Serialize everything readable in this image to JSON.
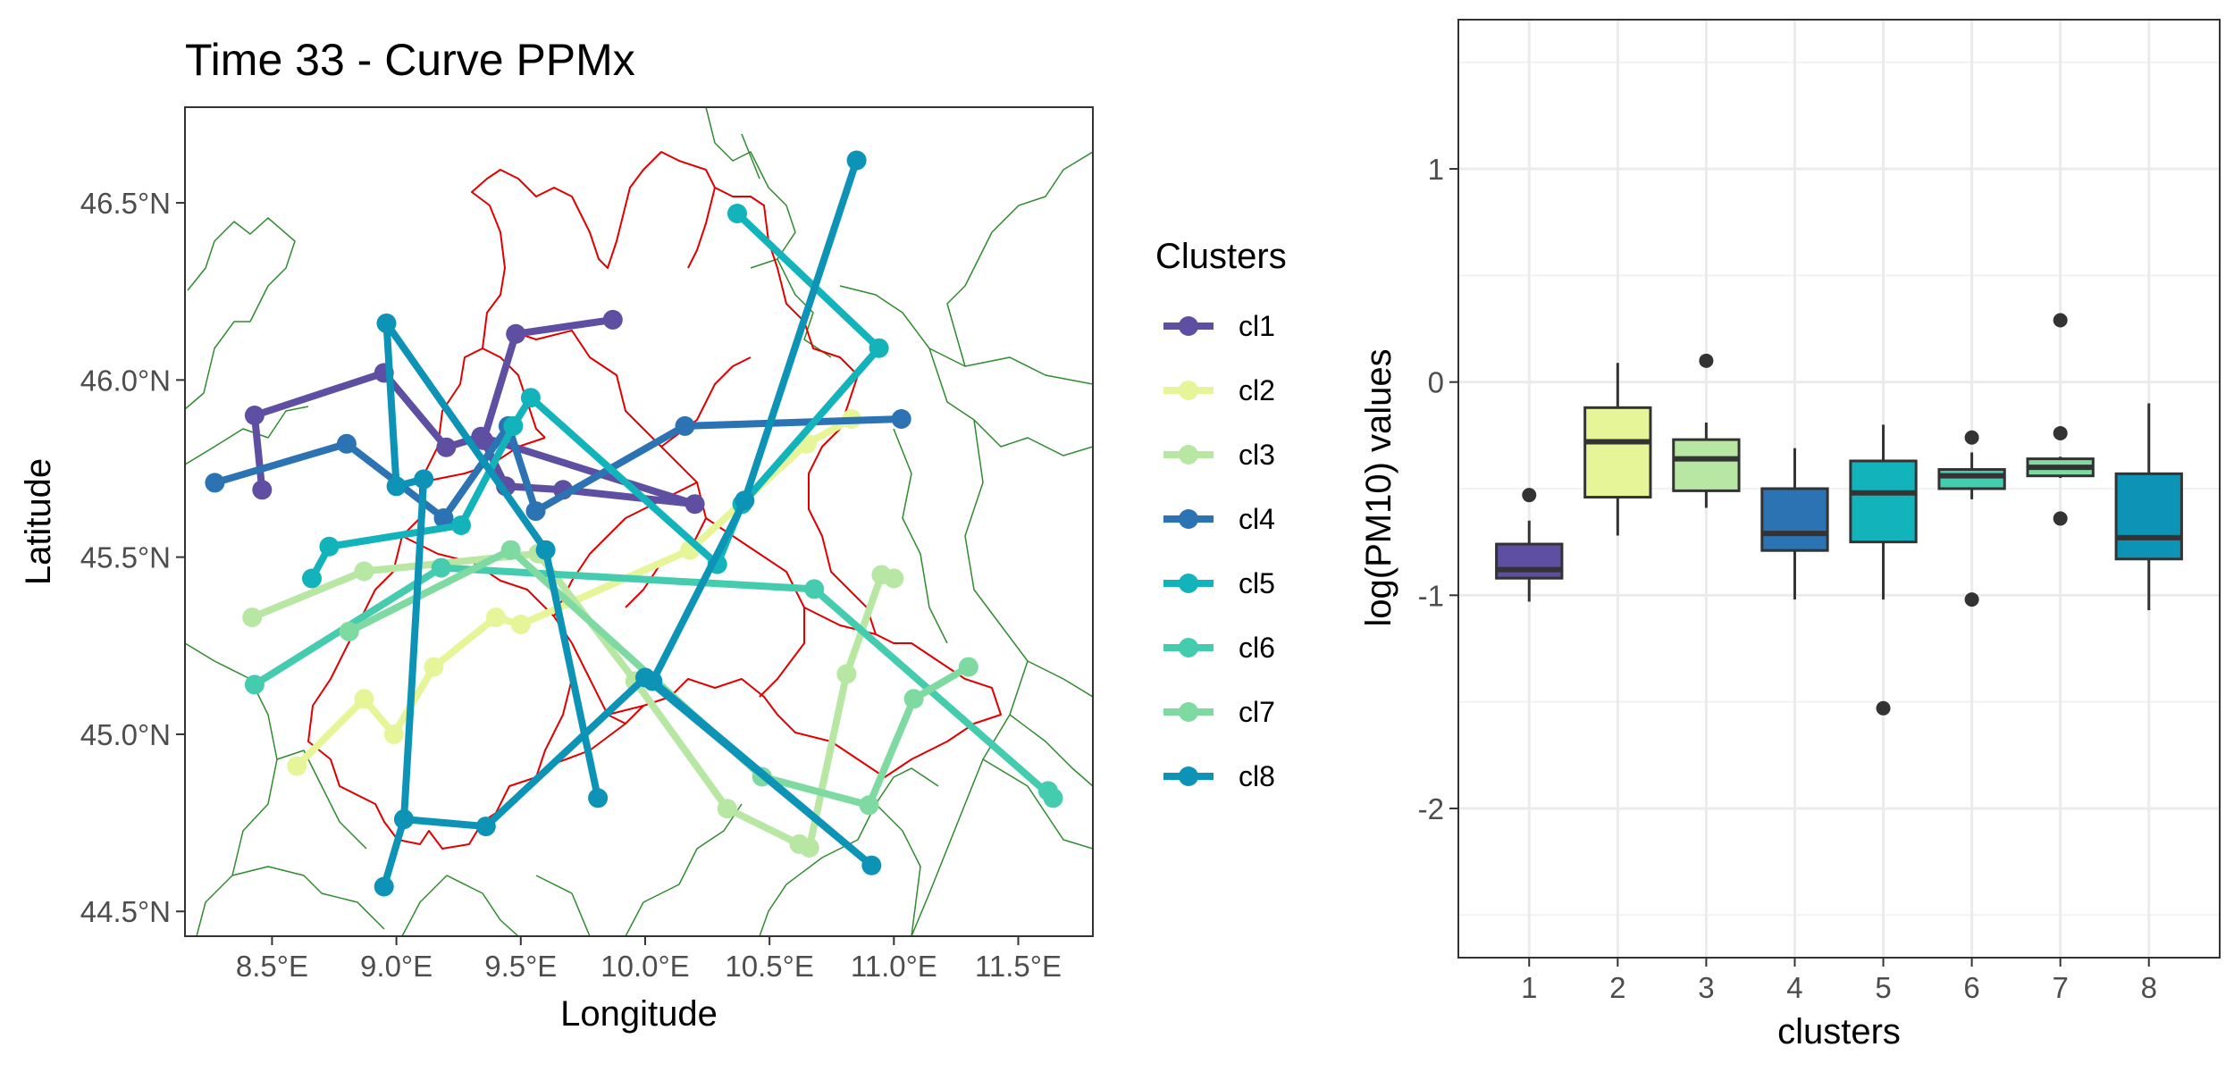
{
  "chart_data": [
    {
      "type": "map-line",
      "title": "Time 33 - Curve PPMx",
      "xlabel": "Longitude",
      "ylabel": "Latitude",
      "xlim": [
        8.15,
        11.8
      ],
      "ylim": [
        44.43,
        46.77
      ],
      "x_ticks": [
        8.5,
        9.0,
        9.5,
        10.0,
        10.5,
        11.0,
        11.5
      ],
      "x_tick_labels": [
        "8.5°E",
        "9.0°E",
        "9.5°E",
        "10.0°E",
        "10.5°E",
        "11.0°E",
        "11.5°E"
      ],
      "y_ticks": [
        44.5,
        45.0,
        45.5,
        46.0,
        46.5
      ],
      "y_tick_labels": [
        "44.5°N",
        "45.0°N",
        "45.5°N",
        "46.0°N",
        "46.5°N"
      ],
      "legend": {
        "title": "Clusters",
        "position": "right",
        "entries": [
          {
            "label": "cl1",
            "color": "#5E4FA2"
          },
          {
            "label": "cl2",
            "color": "#E6F598"
          },
          {
            "label": "cl3",
            "color": "#B8E7A4"
          },
          {
            "label": "cl4",
            "color": "#2B73B3"
          },
          {
            "label": "cl5",
            "color": "#13B3BC"
          },
          {
            "label": "cl6",
            "color": "#45CBAE"
          },
          {
            "label": "cl7",
            "color": "#7EDAA1"
          },
          {
            "label": "cl8",
            "color": "#0D93B6"
          }
        ]
      },
      "series": [
        {
          "name": "cl1",
          "points": [
            [
              9.87,
              46.17
            ],
            [
              9.48,
              46.13
            ],
            [
              9.35,
              45.83
            ],
            [
              9.44,
              45.7
            ],
            [
              9.67,
              45.69
            ],
            [
              10.2,
              45.65
            ],
            [
              9.34,
              45.84
            ],
            [
              9.2,
              45.81
            ],
            [
              8.95,
              46.02
            ],
            [
              8.43,
              45.9
            ],
            [
              8.46,
              45.69
            ]
          ]
        },
        {
          "name": "cl2",
          "points": [
            [
              8.6,
              44.91
            ],
            [
              8.87,
              45.1
            ],
            [
              8.99,
              45.0
            ],
            [
              9.15,
              45.19
            ],
            [
              9.4,
              45.33
            ],
            [
              9.5,
              45.31
            ],
            [
              10.18,
              45.52
            ],
            [
              10.65,
              45.82
            ],
            [
              10.83,
              45.89
            ]
          ]
        },
        {
          "name": "cl3",
          "points": [
            [
              8.42,
              45.33
            ],
            [
              8.87,
              45.46
            ],
            [
              9.57,
              45.51
            ],
            [
              9.96,
              45.15
            ],
            [
              10.33,
              44.79
            ],
            [
              10.62,
              44.69
            ],
            [
              10.66,
              44.68
            ],
            [
              10.81,
              45.17
            ],
            [
              10.95,
              45.45
            ],
            [
              11.0,
              45.44
            ]
          ]
        },
        {
          "name": "cl4",
          "points": [
            [
              8.27,
              45.71
            ],
            [
              8.8,
              45.82
            ],
            [
              9.19,
              45.61
            ],
            [
              9.45,
              45.87
            ],
            [
              9.56,
              45.63
            ],
            [
              10.16,
              45.87
            ],
            [
              11.03,
              45.89
            ]
          ]
        },
        {
          "name": "cl5",
          "points": [
            [
              10.37,
              46.47
            ],
            [
              10.94,
              46.09
            ],
            [
              10.39,
              45.65
            ],
            [
              10.29,
              45.48
            ],
            [
              9.54,
              45.95
            ],
            [
              9.47,
              45.87
            ],
            [
              9.26,
              45.59
            ],
            [
              8.73,
              45.53
            ],
            [
              8.66,
              45.44
            ]
          ]
        },
        {
          "name": "cl6",
          "points": [
            [
              8.43,
              45.14
            ],
            [
              9.18,
              45.47
            ],
            [
              10.68,
              45.41
            ],
            [
              11.64,
              44.82
            ],
            [
              11.62,
              44.84
            ]
          ]
        },
        {
          "name": "cl7",
          "points": [
            [
              8.81,
              45.29
            ],
            [
              9.46,
              45.52
            ],
            [
              10.47,
              44.88
            ],
            [
              10.9,
              44.8
            ],
            [
              11.08,
              45.1
            ],
            [
              11.3,
              45.19
            ]
          ]
        },
        {
          "name": "cl8",
          "points": [
            [
              10.85,
              46.62
            ],
            [
              10.4,
              45.66
            ],
            [
              10.03,
              45.15
            ],
            [
              10.91,
              44.63
            ],
            [
              10.0,
              45.16
            ],
            [
              9.36,
              44.74
            ],
            [
              9.03,
              44.76
            ],
            [
              8.95,
              44.57
            ],
            [
              9.03,
              44.76
            ],
            [
              9.11,
              45.72
            ],
            [
              9.0,
              45.7
            ],
            [
              8.96,
              46.16
            ],
            [
              9.6,
              45.52
            ],
            [
              9.81,
              44.82
            ]
          ]
        }
      ]
    },
    {
      "type": "boxplot",
      "xlabel": "clusters",
      "ylabel": "log(PM10) values",
      "ylim": [
        -2.7,
        1.7
      ],
      "y_ticks": [
        1,
        0,
        -1,
        -2
      ],
      "y_tick_labels": [
        "1",
        "0",
        "-1",
        "-2"
      ],
      "categories": [
        "1",
        "2",
        "3",
        "4",
        "5",
        "6",
        "7",
        "8"
      ],
      "boxes": [
        {
          "category": "1",
          "color": "#5E4FA2",
          "whisker_low": -1.03,
          "q1": -0.92,
          "median": -0.88,
          "q3": -0.76,
          "whisker_high": -0.65,
          "outliers": [
            -0.53
          ]
        },
        {
          "category": "2",
          "color": "#E6F598",
          "whisker_low": -0.72,
          "q1": -0.54,
          "median": -0.28,
          "q3": -0.12,
          "whisker_high": 0.09,
          "outliers": []
        },
        {
          "category": "3",
          "color": "#B8E7A4",
          "whisker_low": -0.59,
          "q1": -0.51,
          "median": -0.36,
          "q3": -0.27,
          "whisker_high": -0.19,
          "outliers": [
            0.1
          ]
        },
        {
          "category": "4",
          "color": "#2B73B3",
          "whisker_low": -1.02,
          "q1": -0.79,
          "median": -0.71,
          "q3": -0.5,
          "whisker_high": -0.31,
          "outliers": []
        },
        {
          "category": "5",
          "color": "#13B3BC",
          "whisker_low": -1.02,
          "q1": -0.75,
          "median": -0.52,
          "q3": -0.37,
          "whisker_high": -0.2,
          "outliers": [
            -1.53
          ]
        },
        {
          "category": "6",
          "color": "#45CBAE",
          "whisker_low": -0.55,
          "q1": -0.5,
          "median": -0.44,
          "q3": -0.41,
          "whisker_high": -0.33,
          "outliers": [
            -0.26,
            -1.02
          ]
        },
        {
          "category": "7",
          "color": "#7EDAA1",
          "whisker_low": -0.45,
          "q1": -0.44,
          "median": -0.4,
          "q3": -0.36,
          "whisker_high": -0.35,
          "outliers": [
            0.29,
            -0.24,
            -0.64
          ]
        },
        {
          "category": "8",
          "color": "#0D93B6",
          "whisker_low": -1.07,
          "q1": -0.83,
          "median": -0.73,
          "q3": -0.43,
          "whisker_high": -0.1,
          "outliers": []
        }
      ]
    }
  ]
}
